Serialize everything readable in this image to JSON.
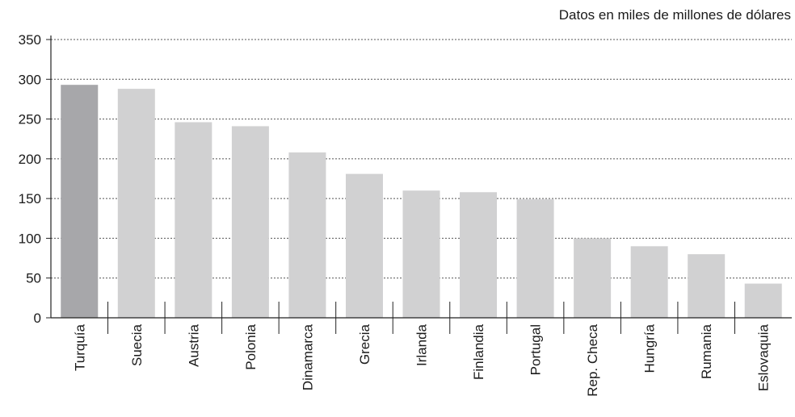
{
  "chart_data": {
    "type": "bar",
    "note": "Datos en miles de millones de dólares",
    "categories": [
      "Turquía",
      "Suecia",
      "Austria",
      "Polonia",
      "Dinamarca",
      "Grecia",
      "Irlanda",
      "Finlandia",
      "Portugal",
      "Rep. Checa",
      "Hungría",
      "Rumania",
      "Eslovaquia"
    ],
    "values": [
      293,
      288,
      246,
      241,
      208,
      181,
      160,
      158,
      149,
      100,
      90,
      80,
      43
    ],
    "highlight_index": 0,
    "yticks": [
      0,
      50,
      100,
      150,
      200,
      250,
      300,
      350
    ],
    "ylim": [
      0,
      350
    ],
    "grid": true,
    "colors": {
      "bar": "#d1d1d2",
      "highlight": "#a7a7aa",
      "grid": "#555555",
      "axis": "#222222"
    }
  }
}
